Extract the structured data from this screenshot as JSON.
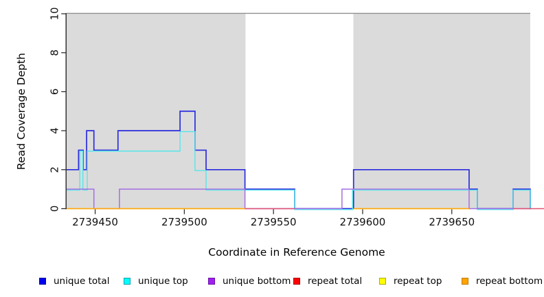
{
  "figure": {
    "y_axis_label": "Read Coverage Depth",
    "x_axis_label": "Coordinate in Reference Genome"
  },
  "legend": {
    "items": [
      {
        "label": "unique total",
        "fill": "#0000F0",
        "border": "#0000A0"
      },
      {
        "label": "unique top",
        "fill": "#00FFFF",
        "border": "#00A0B0"
      },
      {
        "label": "unique bottom",
        "fill": "#A020F0",
        "border": "#6A11A8"
      },
      {
        "label": "repeat total",
        "fill": "#FF0000",
        "border": "#B00000"
      },
      {
        "label": "repeat top",
        "fill": "#FFFF00",
        "border": "#ABAB00"
      },
      {
        "label": "repeat bottom",
        "fill": "#FFA500",
        "border": "#BE7A00"
      }
    ]
  },
  "chart_data": {
    "type": "line",
    "subtype": "step-coverage",
    "title": "",
    "xlabel": "Coordinate in Reference Genome",
    "ylabel": "Read Coverage Depth",
    "xlim": [
      2739434,
      2739694
    ],
    "ylim": [
      0,
      10
    ],
    "grid": false,
    "x_ticks": [
      {
        "value": 2739450,
        "label": "2739450"
      },
      {
        "value": 2739500,
        "label": "2739500"
      },
      {
        "value": 2739550,
        "label": "2739550"
      },
      {
        "value": 2739600,
        "label": "2739600"
      },
      {
        "value": 2739650,
        "label": "2739650"
      }
    ],
    "y_ticks": [
      {
        "value": 0,
        "label": "0"
      },
      {
        "value": 2,
        "label": "2"
      },
      {
        "value": 4,
        "label": "4"
      },
      {
        "value": 6,
        "label": "6"
      },
      {
        "value": 8,
        "label": "8"
      },
      {
        "value": 10,
        "label": "10"
      }
    ],
    "shaded_regions": {
      "color": "#DBDBDB",
      "top_border_color": "#8F8F8F",
      "ranges": [
        [
          2739434,
          2739534.3
        ],
        [
          2739594.8,
          2739694
        ]
      ]
    },
    "series": [
      {
        "name": "unique total",
        "color": "#2B2BDF",
        "width": 1.7,
        "steps": [
          [
            2739434,
            2
          ],
          [
            2739440.7,
            3
          ],
          [
            2739443.3,
            2
          ],
          [
            2739445.2,
            4
          ],
          [
            2739449.3,
            3
          ],
          [
            2739462.8,
            4
          ],
          [
            2739497.6,
            5
          ],
          [
            2739506.0,
            3
          ],
          [
            2739512.2,
            2
          ],
          [
            2739534.0,
            1
          ],
          [
            2739561.9,
            0
          ],
          [
            2739594.9,
            2
          ],
          [
            2739659.7,
            1
          ],
          [
            2739664.3,
            0
          ],
          [
            2739684.4,
            1
          ],
          [
            2739694,
            0
          ]
        ]
      },
      {
        "name": "unique top",
        "color": "#55E6EA",
        "width": 1.4,
        "dy": 1.3,
        "steps": [
          [
            2739434,
            1
          ],
          [
            2739441.4,
            3
          ],
          [
            2739443.1,
            1
          ],
          [
            2739445.6,
            3
          ],
          [
            2739497.6,
            4
          ],
          [
            2739506.0,
            2
          ],
          [
            2739512.2,
            1
          ],
          [
            2739561.9,
            0
          ],
          [
            2739594.3,
            1
          ],
          [
            2739664.3,
            0
          ],
          [
            2739684.4,
            1
          ],
          [
            2739694,
            0
          ]
        ]
      },
      {
        "name": "unique bottom",
        "color": "#A36FE3",
        "width": 1.5,
        "steps": [
          [
            2739434,
            1
          ],
          [
            2739449.3,
            0
          ],
          [
            2739463.6,
            1
          ],
          [
            2739534.0,
            0
          ],
          [
            2739588.4,
            1
          ],
          [
            2739659.7,
            0
          ]
        ]
      },
      {
        "name": "repeat total",
        "color": "#E25070",
        "width": 1.5,
        "runs": [
          {
            "from": 2739534.0,
            "to": 2739561.9,
            "value": 0
          },
          {
            "from": 2739684.4,
            "to": 2739702.0,
            "value": 0
          }
        ]
      },
      {
        "name": "repeat top",
        "color": "#FFFF00",
        "width": 1.4,
        "runs": [
          {
            "from": 2739434,
            "to": 2739534.0,
            "value": 0
          },
          {
            "from": 2739594.8,
            "to": 2739659.7,
            "value": 0
          }
        ]
      },
      {
        "name": "repeat bottom",
        "color": "#FFA014",
        "width": 1.6,
        "runs": [
          {
            "from": 2739434,
            "to": 2739534.0,
            "value": 0
          },
          {
            "from": 2739594.8,
            "to": 2739659.7,
            "value": 0
          }
        ]
      }
    ]
  }
}
